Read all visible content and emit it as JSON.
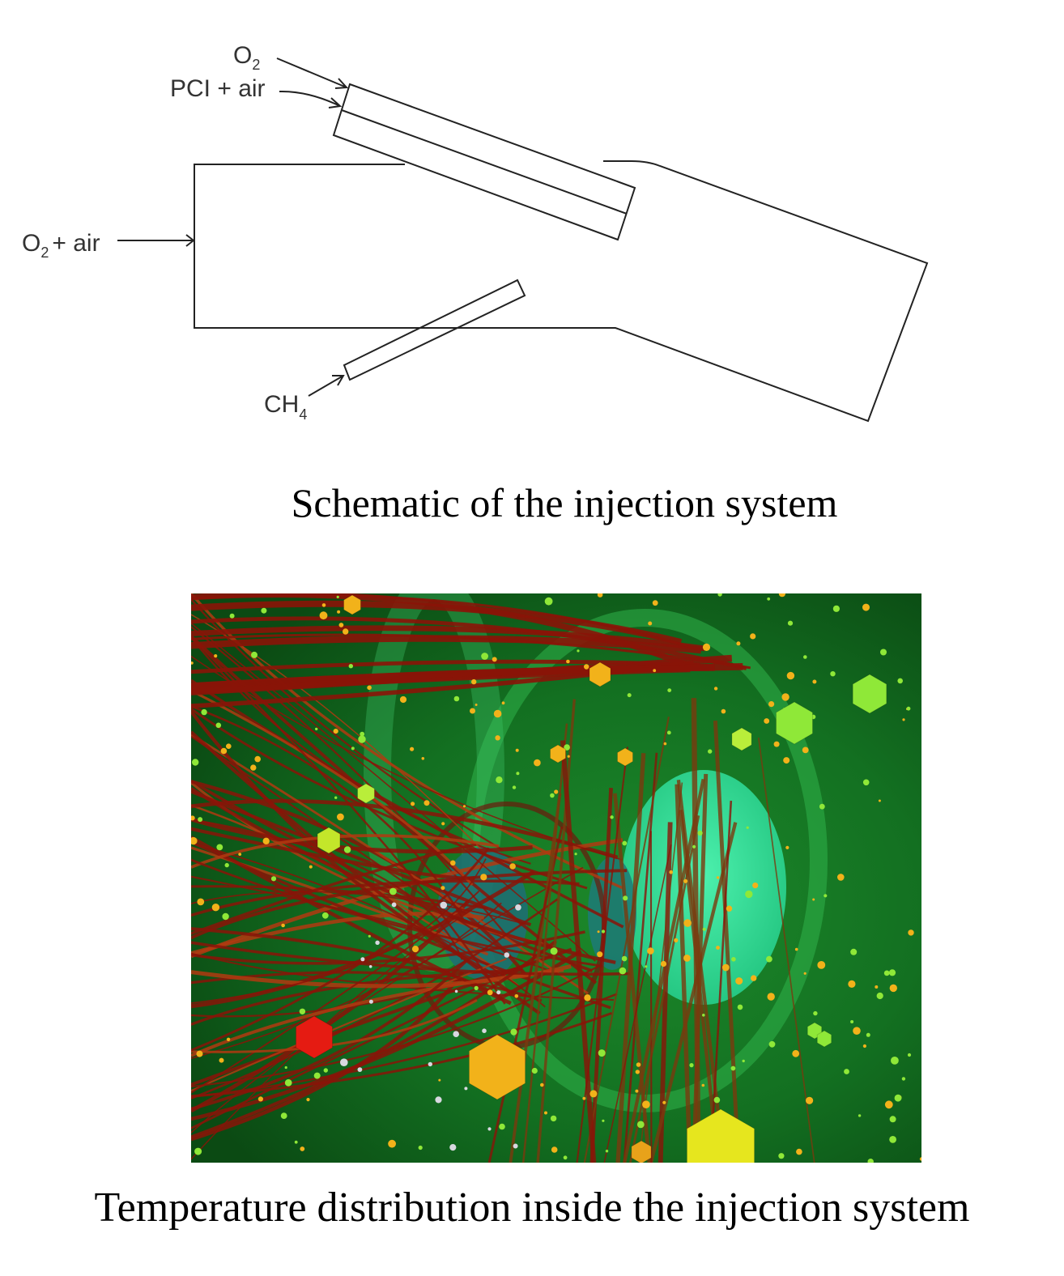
{
  "schematic": {
    "labels": {
      "o2_top": {
        "main": "O",
        "sub": "2"
      },
      "pci_air": "PCI + air",
      "o2_air": {
        "main": "O",
        "sub": "2",
        "rest": "+ air"
      },
      "ch4": {
        "main": "CH",
        "sub": "4"
      }
    },
    "caption": "Schematic of the injection system"
  },
  "temperature_render": {
    "caption": "Temperature distribution inside the injection system",
    "colors": {
      "background": "#0f5a17",
      "hot_streamline": "#8a1408",
      "warm_particle": "#f2b21a",
      "cool_particle": "#8fe838",
      "outlet_disc": "#34e39a",
      "core": "#1e6f72"
    }
  }
}
